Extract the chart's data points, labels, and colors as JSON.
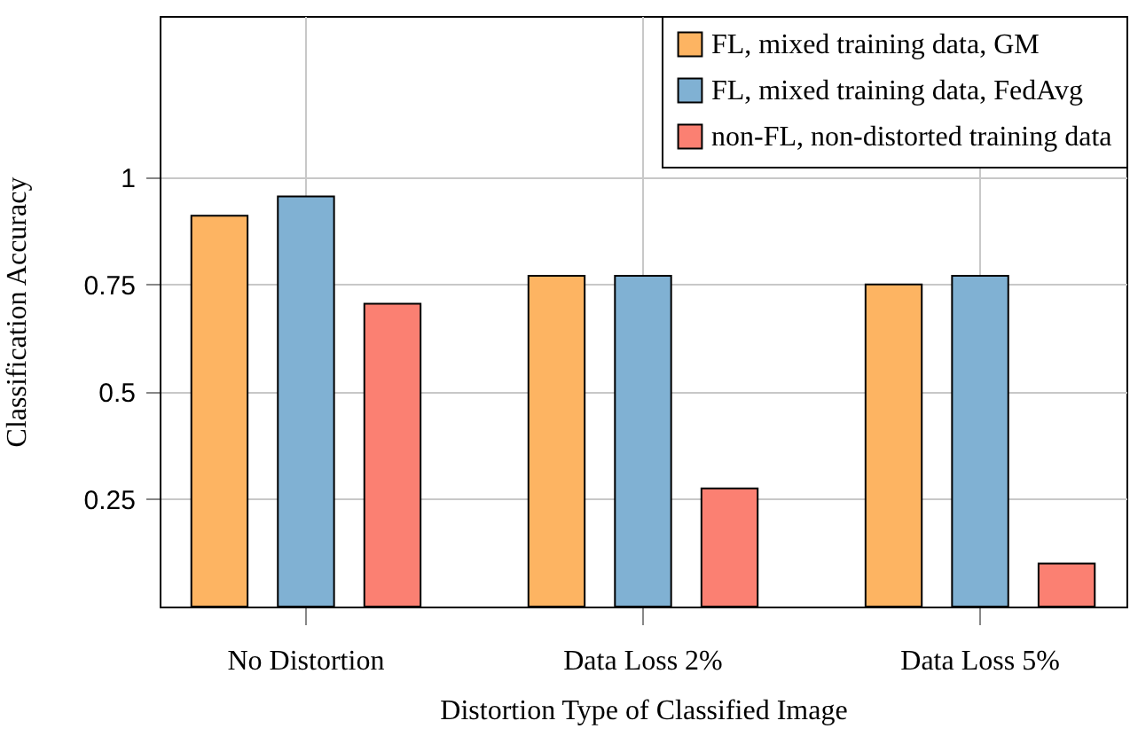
{
  "chart_data": {
    "type": "bar",
    "xlabel": "Distortion Type of Classified Image",
    "ylabel": "Classification Accuracy",
    "categories": [
      "No Distortion",
      "Data Loss 2%",
      "Data Loss 5%"
    ],
    "series": [
      {
        "name": "FL, mixed training data, GM",
        "color": "#fdb462",
        "values": [
          0.91,
          0.77,
          0.75
        ]
      },
      {
        "name": "FL, mixed training data, FedAvg",
        "color": "#80b1d3",
        "values": [
          0.955,
          0.77,
          0.77
        ]
      },
      {
        "name": "non-FL, non-distorted training data",
        "color": "#fb8072",
        "values": [
          0.705,
          0.275,
          0.1
        ]
      }
    ],
    "ylim": [
      0,
      1.375
    ],
    "yticks": [
      0.25,
      0.5,
      0.75,
      1
    ],
    "grid": true,
    "legend": "top right"
  }
}
